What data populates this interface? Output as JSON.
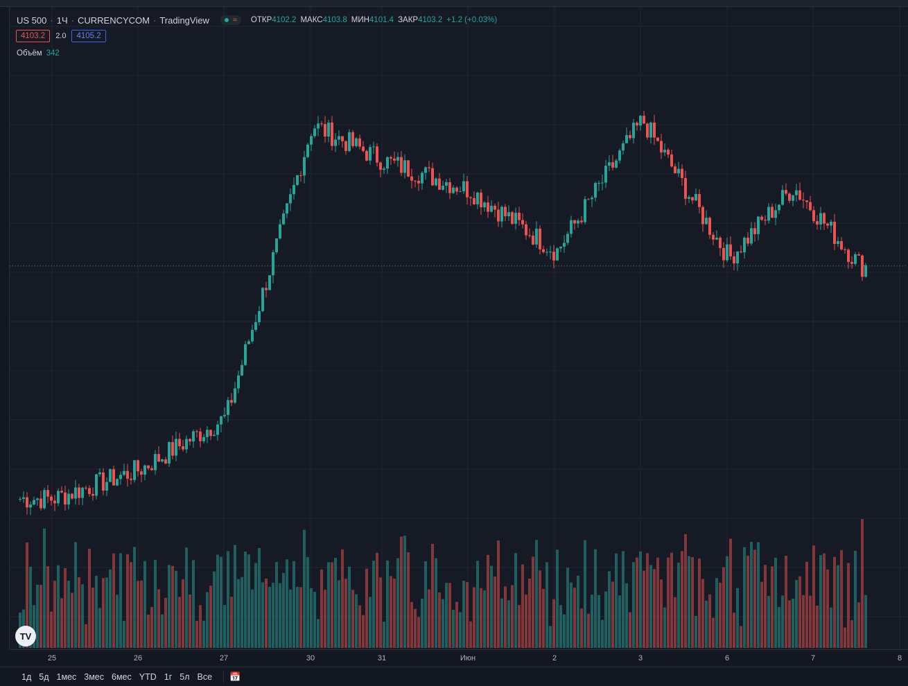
{
  "header": {
    "symbol": "US 500",
    "interval": "1Ч",
    "exchange": "CURRENCYCOM",
    "provider": "TradingView",
    "ohlc": {
      "open_label": "ОТКР",
      "open": "4102.2",
      "high_label": "МАКС",
      "high": "4103.8",
      "low_label": "МИН",
      "low": "4101.4",
      "close_label": "ЗАКР",
      "close": "4103.2",
      "change": "+1.2 (+0.03%)"
    },
    "bid": "4103.2",
    "spread": "2.0",
    "ask": "4105.2"
  },
  "volume_legend": {
    "label": "Объём",
    "value": "342"
  },
  "logo_text": "TV",
  "x_axis_labels": [
    "25",
    "26",
    "27",
    "30",
    "31",
    "Июн",
    "2",
    "3",
    "6",
    "7",
    "8"
  ],
  "range_buttons": [
    "1д",
    "5д",
    "1мес",
    "3мес",
    "6мес",
    "YTD",
    "1г",
    "5л",
    "Все"
  ],
  "colors": {
    "up": "#26a69a",
    "down": "#ef5350",
    "background": "#161a25",
    "grid": "#232734",
    "price_line": "#26a69a"
  },
  "chart_data": {
    "type": "candlestick",
    "symbol": "US 500",
    "interval": "1Ч",
    "last_price": 4103.2,
    "close_anchors": [
      {
        "day": "25",
        "close": 3960
      },
      {
        "day": "26",
        "close": 3978
      },
      {
        "day": "27",
        "close": 4010
      },
      {
        "day": "30",
        "close": 4190
      },
      {
        "day": "31",
        "close": 4168
      },
      {
        "day": "Июн",
        "close": 4150
      },
      {
        "day": "2",
        "close": 4112
      },
      {
        "day": "3",
        "close": 4193
      },
      {
        "day": "6",
        "close": 4108
      },
      {
        "day": "7",
        "close": 4152
      },
      {
        "day": "7 (last)",
        "close": 4103.2
      }
    ],
    "volume_series": [
      {
        "name": "Объём",
        "last": 342
      }
    ]
  }
}
